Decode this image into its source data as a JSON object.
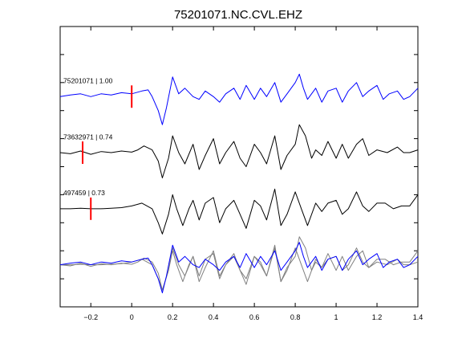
{
  "chart_data": {
    "type": "line",
    "title": "75201071.NC.CVL.EHZ",
    "xlabel": "",
    "ylabel": "",
    "xlim": [
      -0.35,
      1.4
    ],
    "ylim": [
      0,
      5
    ],
    "x_ticks": [
      -0.2,
      0,
      0.2,
      0.4,
      0.6,
      0.8,
      1,
      1.2,
      1.4
    ],
    "x_tick_labels": [
      "−0.2",
      "0",
      "0.2",
      "0.4",
      "0.6",
      "0.8",
      "1",
      "1.2",
      "1.4"
    ],
    "y_ticks": [
      0.5,
      1,
      1.5,
      2,
      2.5,
      3,
      3.5,
      4,
      4.5
    ],
    "grid": false,
    "marker_color": "#ff0000",
    "traces": [
      {
        "label": "75201071 | 1.00",
        "baseline": 3.75,
        "color": "#0000ff",
        "pick_time": 0.0,
        "x": [
          -0.35,
          -0.3,
          -0.25,
          -0.2,
          -0.15,
          -0.1,
          -0.05,
          0.0,
          0.05,
          0.08,
          0.1,
          0.13,
          0.15,
          0.17,
          0.2,
          0.23,
          0.26,
          0.3,
          0.33,
          0.36,
          0.4,
          0.43,
          0.46,
          0.5,
          0.53,
          0.56,
          0.6,
          0.63,
          0.66,
          0.7,
          0.73,
          0.76,
          0.8,
          0.82,
          0.84,
          0.86,
          0.9,
          0.93,
          0.96,
          1.0,
          1.03,
          1.06,
          1.1,
          1.13,
          1.16,
          1.2,
          1.23,
          1.26,
          1.3,
          1.33,
          1.36,
          1.4
        ],
        "y": [
          0.0,
          0.03,
          0.05,
          0.0,
          0.05,
          0.03,
          0.07,
          0.05,
          0.1,
          0.12,
          0.0,
          -0.25,
          -0.5,
          -0.2,
          0.35,
          0.05,
          0.15,
          0.0,
          -0.05,
          0.1,
          0.0,
          -0.1,
          0.05,
          0.15,
          -0.05,
          0.2,
          -0.05,
          0.15,
          0.0,
          0.25,
          -0.1,
          0.05,
          0.25,
          0.4,
          0.15,
          -0.05,
          0.15,
          -0.1,
          0.1,
          0.15,
          -0.1,
          0.1,
          0.25,
          0.0,
          0.1,
          0.2,
          -0.05,
          0.05,
          0.1,
          -0.05,
          0.0,
          0.15
        ]
      },
      {
        "label": "73632971 | 0.74",
        "baseline": 2.75,
        "color": "#000000",
        "pick_time": -0.24,
        "x": [
          -0.35,
          -0.3,
          -0.25,
          -0.2,
          -0.15,
          -0.1,
          -0.05,
          0.0,
          0.03,
          0.06,
          0.1,
          0.13,
          0.15,
          0.18,
          0.2,
          0.23,
          0.26,
          0.3,
          0.33,
          0.36,
          0.4,
          0.43,
          0.46,
          0.5,
          0.53,
          0.56,
          0.6,
          0.63,
          0.66,
          0.7,
          0.73,
          0.76,
          0.8,
          0.82,
          0.85,
          0.88,
          0.9,
          0.93,
          0.96,
          1.0,
          1.03,
          1.06,
          1.1,
          1.13,
          1.16,
          1.2,
          1.25,
          1.3,
          1.33,
          1.36,
          1.4
        ],
        "y": [
          0.0,
          -0.02,
          0.03,
          -0.03,
          0.02,
          0.0,
          0.03,
          0.01,
          0.05,
          0.12,
          0.05,
          -0.15,
          -0.45,
          -0.1,
          0.3,
          0.0,
          -0.2,
          0.15,
          -0.3,
          -0.05,
          0.25,
          -0.2,
          0.0,
          0.2,
          -0.1,
          -0.25,
          0.15,
          0.0,
          -0.2,
          0.3,
          -0.3,
          -0.05,
          0.15,
          0.5,
          0.3,
          -0.1,
          0.05,
          -0.05,
          0.2,
          -0.1,
          0.15,
          -0.1,
          0.15,
          0.25,
          -0.05,
          0.05,
          0.0,
          0.1,
          0.0,
          0.0,
          0.05
        ]
      },
      {
        "label": "497459 | 0.73",
        "baseline": 1.75,
        "color": "#000000",
        "pick_time": -0.2,
        "x": [
          -0.35,
          -0.3,
          -0.25,
          -0.2,
          -0.15,
          -0.1,
          -0.05,
          0.0,
          0.05,
          0.1,
          0.13,
          0.15,
          0.18,
          0.2,
          0.22,
          0.25,
          0.28,
          0.3,
          0.33,
          0.36,
          0.4,
          0.43,
          0.46,
          0.5,
          0.53,
          0.56,
          0.6,
          0.63,
          0.66,
          0.7,
          0.73,
          0.76,
          0.8,
          0.83,
          0.86,
          0.9,
          0.93,
          0.96,
          1.0,
          1.03,
          1.06,
          1.1,
          1.13,
          1.16,
          1.2,
          1.24,
          1.28,
          1.32,
          1.36,
          1.4
        ],
        "y": [
          0.0,
          0.0,
          0.01,
          0.0,
          0.0,
          0.01,
          0.02,
          0.05,
          0.1,
          0.0,
          -0.25,
          -0.45,
          -0.1,
          0.25,
          0.0,
          -0.3,
          0.0,
          0.15,
          -0.2,
          0.1,
          0.2,
          -0.25,
          0.0,
          0.15,
          -0.1,
          -0.35,
          0.15,
          0.05,
          -0.2,
          0.35,
          -0.3,
          -0.1,
          0.3,
          0.0,
          -0.3,
          0.1,
          -0.05,
          0.1,
          0.15,
          -0.1,
          0.0,
          0.3,
          0.05,
          -0.05,
          0.1,
          0.1,
          0.0,
          0.05,
          0.05,
          0.25
        ]
      }
    ]
  }
}
